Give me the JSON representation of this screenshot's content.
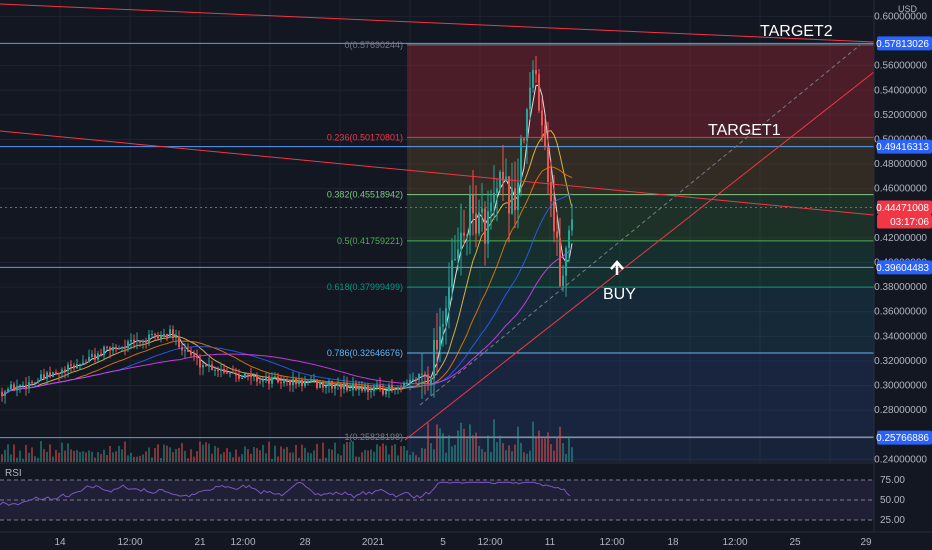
{
  "currency": "USD",
  "price_axis": {
    "ticks": [
      "0.60000000",
      "0.56000000",
      "0.54000000",
      "0.52000000",
      "0.50000000",
      "0.48000000",
      "0.46000000",
      "0.42000000",
      "0.40000000",
      "0.38000000",
      "0.36000000",
      "0.34000000",
      "0.32000000",
      "0.30000000",
      "0.28000000",
      "0.24000000"
    ],
    "tick_values": [
      0.6,
      0.56,
      0.54,
      0.52,
      0.5,
      0.48,
      0.46,
      0.42,
      0.4,
      0.38,
      0.36,
      0.34,
      0.32,
      0.3,
      0.28,
      0.24
    ]
  },
  "time_axis": {
    "ticks": [
      "14",
      "12:00",
      "21",
      "12:00",
      "28",
      "2021",
      "5",
      "12:00",
      "11",
      "12:00",
      "18",
      "12:00",
      "25",
      "29"
    ]
  },
  "price_badges": [
    {
      "label": "0.57813026",
      "value": 0.57813026,
      "color": "#2962ff"
    },
    {
      "label": "0.49416313",
      "value": 0.49416313,
      "color": "#2962ff"
    },
    {
      "label": "0.44471008",
      "value": 0.44471008,
      "color": "#f23645"
    },
    {
      "label": "03:17:06",
      "value": 0.4333,
      "color": "#f23645"
    },
    {
      "label": "0.39604483",
      "value": 0.39604483,
      "color": "#2962ff"
    },
    {
      "label": "0.25766886",
      "value": 0.25766886,
      "color": "#2962ff"
    }
  ],
  "fib_levels": [
    {
      "label": "0(0.57690244)",
      "value": 0.57690244,
      "color": "#787b86"
    },
    {
      "label": "0.236(0.50170801)",
      "value": 0.50170801,
      "color": "#f23645"
    },
    {
      "label": "0.382(0.45518942)",
      "value": 0.45518942,
      "color": "#81c784"
    },
    {
      "label": "0.5(0.41759221)",
      "value": 0.41759221,
      "color": "#4caf50"
    },
    {
      "label": "0.618(0.37999499)",
      "value": 0.37999499,
      "color": "#089981"
    },
    {
      "label": "0.786(0.32646676)",
      "value": 0.32646676,
      "color": "#64b5f6"
    },
    {
      "label": "1(0.25828198)",
      "value": 0.25828198,
      "color": "#787b86"
    }
  ],
  "annotations": {
    "target1": "TARGET1",
    "target2": "TARGET2",
    "buy": "BUY"
  },
  "rsi": {
    "label": "RSI",
    "ticks": [
      "75.00",
      "50.00",
      "25.00"
    ],
    "tick_values": [
      75,
      50,
      25
    ]
  },
  "chart_data": {
    "type": "candlestick",
    "currency": "USD",
    "last_price": 0.44471008,
    "countdown": "03:17:06",
    "horizontal_levels": [
      0.57813026,
      0.49416313,
      0.39604483,
      0.25766886
    ],
    "fibonacci_retracement": [
      {
        "ratio": 0,
        "price": 0.57690244
      },
      {
        "ratio": 0.236,
        "price": 0.50170801
      },
      {
        "ratio": 0.382,
        "price": 0.45518942
      },
      {
        "ratio": 0.5,
        "price": 0.41759221
      },
      {
        "ratio": 0.618,
        "price": 0.37999499
      },
      {
        "ratio": 0.786,
        "price": 0.32646676
      },
      {
        "ratio": 1,
        "price": 0.25828198
      }
    ],
    "ylim": [
      0.225,
      0.6
    ],
    "rsi_levels": [
      75,
      50,
      25
    ],
    "annotations": [
      "TARGET1",
      "TARGET2",
      "BUY"
    ]
  }
}
